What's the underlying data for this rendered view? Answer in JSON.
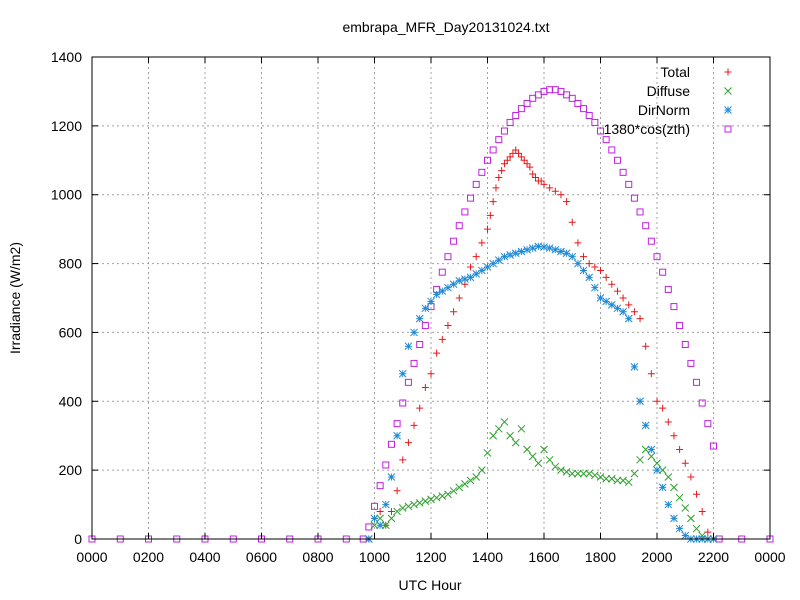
{
  "chart_data": {
    "type": "scatter",
    "title": "embrapa_MFR_Day20131024.txt",
    "xlabel": "UTC Hour",
    "ylabel": "Irradiance (W/m2)",
    "xlim": [
      0,
      24
    ],
    "ylim": [
      0,
      1400
    ],
    "x_tick_values": [
      0,
      2,
      4,
      6,
      8,
      10,
      12,
      14,
      16,
      18,
      20,
      22,
      24
    ],
    "x_tick_labels": [
      "0000",
      "0200",
      "0400",
      "0600",
      "0800",
      "1000",
      "1200",
      "1400",
      "1600",
      "1800",
      "2000",
      "2200",
      "0000"
    ],
    "y_ticks": [
      0,
      200,
      400,
      600,
      800,
      1000,
      1200,
      1400
    ],
    "grid": true,
    "legend_position": "top-right",
    "series": [
      {
        "name": "Total",
        "color": "#e41a1c",
        "marker": "plus",
        "x": [
          9.8,
          10.0,
          10.2,
          10.4,
          10.6,
          10.8,
          11.0,
          11.2,
          11.4,
          11.6,
          11.8,
          12.0,
          12.2,
          12.4,
          12.6,
          12.8,
          13.0,
          13.2,
          13.4,
          13.6,
          13.8,
          14.0,
          14.1,
          14.2,
          14.3,
          14.4,
          14.5,
          14.6,
          14.7,
          14.8,
          14.9,
          15.0,
          15.1,
          15.2,
          15.3,
          15.4,
          15.5,
          15.6,
          15.7,
          15.8,
          15.9,
          16.0,
          16.2,
          16.4,
          16.6,
          16.8,
          17.0,
          17.2,
          17.4,
          17.6,
          17.8,
          18.0,
          18.2,
          18.4,
          18.6,
          18.8,
          19.0,
          19.2,
          19.4,
          19.6,
          19.8,
          20.0,
          20.2,
          20.4,
          20.6,
          20.8,
          21.0,
          21.2,
          21.4,
          21.6,
          21.8,
          22.0
        ],
        "y": [
          0,
          60,
          80,
          40,
          80,
          140,
          230,
          280,
          330,
          380,
          440,
          480,
          540,
          580,
          620,
          660,
          700,
          740,
          790,
          820,
          860,
          900,
          940,
          980,
          1020,
          1050,
          1070,
          1090,
          1100,
          1110,
          1120,
          1130,
          1120,
          1110,
          1100,
          1090,
          1080,
          1060,
          1050,
          1040,
          1040,
          1030,
          1020,
          1010,
          1000,
          980,
          920,
          860,
          820,
          800,
          790,
          780,
          760,
          740,
          720,
          700,
          680,
          660,
          640,
          560,
          480,
          400,
          380,
          340,
          300,
          260,
          220,
          180,
          130,
          80,
          20,
          0
        ]
      },
      {
        "name": "Diffuse",
        "color": "#2ca02c",
        "marker": "cross",
        "x": [
          9.8,
          10.0,
          10.2,
          10.4,
          10.6,
          10.8,
          11.0,
          11.2,
          11.4,
          11.6,
          11.8,
          12.0,
          12.2,
          12.4,
          12.6,
          12.8,
          13.0,
          13.2,
          13.4,
          13.6,
          13.8,
          14.0,
          14.2,
          14.4,
          14.6,
          14.8,
          15.0,
          15.2,
          15.4,
          15.6,
          15.8,
          16.0,
          16.2,
          16.4,
          16.6,
          16.8,
          17.0,
          17.2,
          17.4,
          17.6,
          17.8,
          18.0,
          18.2,
          18.4,
          18.6,
          18.8,
          19.0,
          19.2,
          19.4,
          19.6,
          19.8,
          20.0,
          20.2,
          20.4,
          20.6,
          20.8,
          21.0,
          21.2,
          21.4,
          21.6,
          21.8,
          22.0
        ],
        "y": [
          0,
          40,
          60,
          40,
          60,
          80,
          90,
          95,
          100,
          105,
          110,
          115,
          120,
          125,
          130,
          140,
          150,
          160,
          170,
          180,
          200,
          250,
          300,
          320,
          340,
          300,
          280,
          320,
          260,
          240,
          220,
          260,
          230,
          210,
          200,
          195,
          190,
          190,
          190,
          190,
          185,
          180,
          175,
          175,
          170,
          170,
          165,
          190,
          230,
          260,
          240,
          220,
          200,
          180,
          150,
          120,
          90,
          60,
          30,
          10,
          0,
          0
        ]
      },
      {
        "name": "DirNorm",
        "color": "#1f8ad6",
        "marker": "star",
        "x": [
          9.8,
          10.0,
          10.2,
          10.4,
          10.6,
          10.8,
          11.0,
          11.2,
          11.4,
          11.6,
          11.8,
          12.0,
          12.2,
          12.4,
          12.6,
          12.8,
          13.0,
          13.2,
          13.4,
          13.6,
          13.8,
          14.0,
          14.2,
          14.4,
          14.6,
          14.8,
          15.0,
          15.2,
          15.4,
          15.6,
          15.8,
          16.0,
          16.2,
          16.4,
          16.6,
          16.8,
          17.0,
          17.2,
          17.4,
          17.6,
          17.8,
          18.0,
          18.2,
          18.4,
          18.6,
          18.8,
          19.0,
          19.2,
          19.4,
          19.6,
          19.8,
          20.0,
          20.2,
          20.4,
          20.6,
          20.8,
          21.0,
          21.2,
          21.4,
          21.6,
          21.8,
          22.0
        ],
        "y": [
          0,
          60,
          40,
          100,
          180,
          300,
          480,
          560,
          600,
          640,
          670,
          690,
          710,
          720,
          730,
          740,
          750,
          755,
          760,
          770,
          780,
          790,
          800,
          810,
          820,
          825,
          830,
          835,
          840,
          845,
          850,
          848,
          845,
          840,
          835,
          830,
          820,
          800,
          780,
          760,
          730,
          700,
          690,
          680,
          670,
          660,
          640,
          500,
          400,
          330,
          260,
          200,
          150,
          100,
          60,
          30,
          10,
          0,
          0,
          0,
          0,
          0
        ]
      },
      {
        "name": "1380*cos(zth)",
        "color": "#c020e0",
        "marker": "square",
        "x": [
          0,
          1,
          2,
          3,
          4,
          5,
          6,
          7,
          8,
          9,
          9.6,
          9.8,
          10.0,
          10.2,
          10.4,
          10.6,
          10.8,
          11.0,
          11.2,
          11.4,
          11.6,
          11.8,
          12.0,
          12.2,
          12.4,
          12.6,
          12.8,
          13.0,
          13.2,
          13.4,
          13.6,
          13.8,
          14.0,
          14.2,
          14.4,
          14.6,
          14.8,
          15.0,
          15.2,
          15.4,
          15.6,
          15.8,
          16.0,
          16.2,
          16.4,
          16.6,
          16.8,
          17.0,
          17.2,
          17.4,
          17.6,
          17.8,
          18.0,
          18.2,
          18.4,
          18.6,
          18.8,
          19.0,
          19.2,
          19.4,
          19.6,
          19.8,
          20.0,
          20.2,
          20.4,
          20.6,
          20.8,
          21.0,
          21.2,
          21.4,
          21.6,
          21.8,
          22.0,
          22.2,
          23,
          24
        ],
        "y": [
          0,
          0,
          0,
          0,
          0,
          0,
          0,
          0,
          0,
          0,
          0,
          35,
          95,
          155,
          215,
          275,
          335,
          395,
          455,
          510,
          565,
          620,
          675,
          725,
          775,
          820,
          865,
          910,
          950,
          990,
          1030,
          1065,
          1100,
          1130,
          1160,
          1185,
          1210,
          1230,
          1250,
          1265,
          1280,
          1290,
          1300,
          1305,
          1305,
          1300,
          1290,
          1280,
          1265,
          1250,
          1230,
          1210,
          1185,
          1160,
          1130,
          1100,
          1065,
          1030,
          990,
          950,
          910,
          865,
          820,
          775,
          725,
          675,
          620,
          565,
          510,
          455,
          395,
          335,
          270,
          0,
          0,
          0
        ]
      }
    ]
  }
}
